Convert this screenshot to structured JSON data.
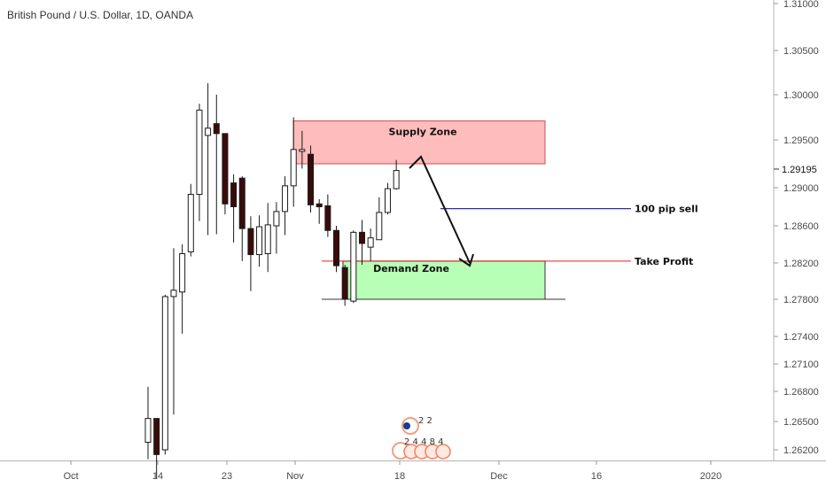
{
  "chart_data": {
    "type": "candlestick",
    "title": "British Pound / U.S. Dollar, 1D, OANDA",
    "y_axis": {
      "ticks": [
        "1.31000",
        "1.30500",
        "1.30000",
        "1.29500",
        "1.29000",
        "1.28600",
        "1.28200",
        "1.27800",
        "1.27400",
        "1.27100",
        "1.26800",
        "1.26500",
        "1.26200"
      ],
      "current_price": "1.29195",
      "current_price_value": 1.29195
    },
    "x_axis": {
      "ticks": [
        "Oct",
        "14",
        "23",
        "Nov",
        "18",
        "Dec",
        "16",
        "2020"
      ]
    },
    "candles": [
      {
        "o": 1.2628,
        "h": 1.2685,
        "l": 1.261,
        "c": 1.2653
      },
      {
        "o": 1.2653,
        "h": 1.2653,
        "l": 1.259,
        "c": 1.2615
      },
      {
        "o": 1.262,
        "h": 1.2785,
        "l": 1.2615,
        "c": 1.2783
      },
      {
        "o": 1.2783,
        "h": 1.2836,
        "l": 1.2657,
        "c": 1.279
      },
      {
        "o": 1.2788,
        "h": 1.284,
        "l": 1.2743,
        "c": 1.283
      },
      {
        "o": 1.2832,
        "h": 1.2904,
        "l": 1.2827,
        "c": 1.2893
      },
      {
        "o": 1.2893,
        "h": 1.299,
        "l": 1.2865,
        "c": 1.2983
      },
      {
        "o": 1.2955,
        "h": 1.3013,
        "l": 1.285,
        "c": 1.2963
      },
      {
        "o": 1.2968,
        "h": 1.3,
        "l": 1.2851,
        "c": 1.2957
      },
      {
        "o": 1.2957,
        "h": 1.2957,
        "l": 1.2872,
        "c": 1.2883
      },
      {
        "o": 1.2905,
        "h": 1.2914,
        "l": 1.2842,
        "c": 1.288
      },
      {
        "o": 1.291,
        "h": 1.2912,
        "l": 1.2822,
        "c": 1.2857
      },
      {
        "o": 1.2857,
        "h": 1.287,
        "l": 1.2789,
        "c": 1.2829
      },
      {
        "o": 1.2829,
        "h": 1.2871,
        "l": 1.2816,
        "c": 1.2859
      },
      {
        "o": 1.283,
        "h": 1.2884,
        "l": 1.281,
        "c": 1.2861
      },
      {
        "o": 1.286,
        "h": 1.2885,
        "l": 1.283,
        "c": 1.2875
      },
      {
        "o": 1.2875,
        "h": 1.2912,
        "l": 1.285,
        "c": 1.2902
      },
      {
        "o": 1.2902,
        "h": 1.2975,
        "l": 1.288,
        "c": 1.294
      },
      {
        "o": 1.2938,
        "h": 1.296,
        "l": 1.292,
        "c": 1.294
      },
      {
        "o": 1.2935,
        "h": 1.2944,
        "l": 1.2874,
        "c": 1.2882
      },
      {
        "o": 1.2883,
        "h": 1.2888,
        "l": 1.2862,
        "c": 1.288
      },
      {
        "o": 1.2881,
        "h": 1.2893,
        "l": 1.2848,
        "c": 1.2855
      },
      {
        "o": 1.2855,
        "h": 1.286,
        "l": 1.281,
        "c": 1.2817
      },
      {
        "o": 1.2815,
        "h": 1.2818,
        "l": 1.2773,
        "c": 1.278
      },
      {
        "o": 1.2778,
        "h": 1.2855,
        "l": 1.2776,
        "c": 1.2853
      },
      {
        "o": 1.2853,
        "h": 1.2866,
        "l": 1.2818,
        "c": 1.2841
      },
      {
        "o": 1.2837,
        "h": 1.2857,
        "l": 1.2822,
        "c": 1.2847
      },
      {
        "o": 1.2845,
        "h": 1.289,
        "l": 1.2845,
        "c": 1.2874
      },
      {
        "o": 1.2874,
        "h": 1.2905,
        "l": 1.2872,
        "c": 1.2899
      },
      {
        "o": 1.2899,
        "h": 1.2929,
        "l": 1.2898,
        "c": 1.2918
      }
    ],
    "annotations": {
      "supply_zone": {
        "label": "Supply Zone",
        "top": 1.2971,
        "bottom": 1.2925
      },
      "demand_zone": {
        "label": "Demand Zone",
        "top": 1.2822,
        "bottom": 1.278
      },
      "sell_line": {
        "label": "100 pip sell",
        "price": 1.2878
      },
      "take_profit": {
        "label": "Take Profit",
        "price": 1.2822
      }
    },
    "events": {
      "row1": "2 2",
      "row2": "2 4 4 8 4"
    }
  },
  "colors": {
    "candle_up_fill": "#ffffff",
    "candle_down_fill": "#3b0a0a",
    "candle_stroke": "#1a1a1a",
    "supply_fill": "#ffbcbc",
    "demand_fill": "#b7ffb7",
    "sell_line": "#2b2bb0",
    "take_profit_line": "#e02020",
    "axis_line": "#b3b3b3",
    "price_label_bg": "#ffffff"
  }
}
